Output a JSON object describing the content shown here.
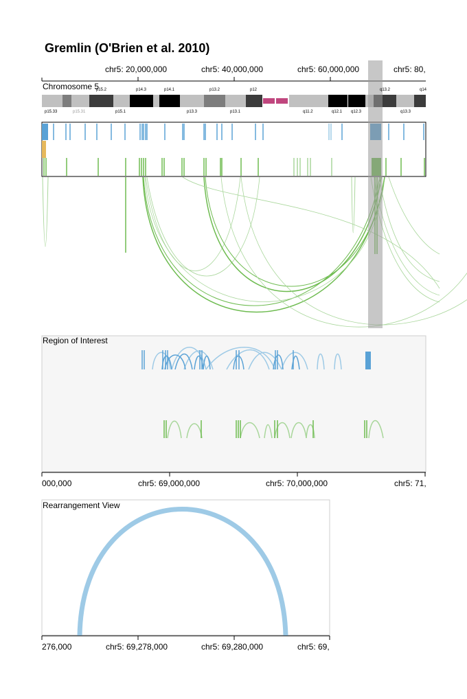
{
  "title": "Gremlin (O'Brien et al. 2010)",
  "overview": {
    "panel_label": "Chromosome 5",
    "axis_ticks": [
      "chr5: 20,000,000",
      "chr5: 40,000,000",
      "chr5: 60,000,000",
      "chr5: 80,"
    ],
    "bands_top": [
      "p15.2",
      "p14.3",
      "p14.1",
      "p13.2",
      "p12",
      "q13.2",
      "q14"
    ],
    "bands_bottom": [
      "p15.33",
      "p15.31",
      "p15.1",
      "p13.3",
      "p13.1",
      "q11.2",
      "q12.1",
      "q12.3",
      "q13.3"
    ]
  },
  "region": {
    "panel_label": "Region of Interest",
    "axis_ticks": [
      "000,000",
      "chr5: 69,000,000",
      "chr5: 70,000,000",
      "chr5: 71,"
    ]
  },
  "rearrangement": {
    "panel_label": "Rearrangement View",
    "axis_ticks": [
      "276,000",
      "chr5: 69,278,000",
      "chr5: 69,280,000",
      "chr5: 69,"
    ]
  },
  "colors": {
    "blue": "#5aa2d6",
    "light_blue": "#9ecae6",
    "green": "#6dbb4f",
    "light_green": "#a8d69a",
    "orange": "#e6b85c",
    "centromere": "#c0467e",
    "selection": "#999999"
  }
}
